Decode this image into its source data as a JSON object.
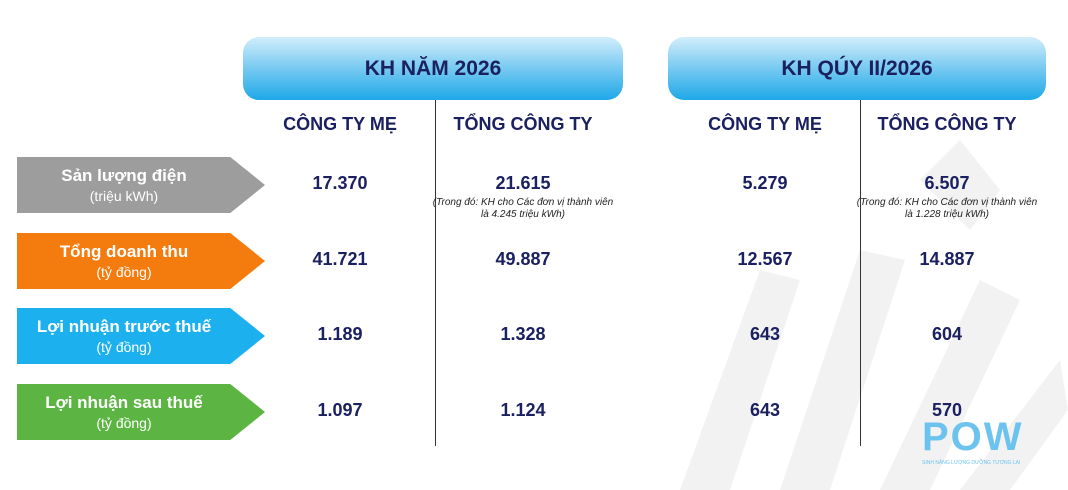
{
  "header": {
    "groups": [
      "KH NĂM 2026",
      "KH QÚY II/2026"
    ],
    "columns": [
      "CÔNG TY MẸ",
      "TỔNG CÔNG TY",
      "CÔNG TY MẸ",
      "TỔNG CÔNG TY"
    ]
  },
  "table": {
    "rows": [
      {
        "label": "Sản lượng điện",
        "unit": "(triệu kWh)",
        "values": [
          "17.370",
          "21.615",
          "5.279",
          "6.507"
        ],
        "notes": {
          "1": "(Trong đó: KH cho Các đơn vị thành viên là 4.245 triệu kWh)",
          "3": "(Trong đó: KH cho Các đơn vị thành viên là 1.228 triệu kWh)"
        }
      },
      {
        "label": "Tổng doanh thu",
        "unit": "(tỷ đồng)",
        "values": [
          "41.721",
          "49.887",
          "12.567",
          "14.887"
        ]
      },
      {
        "label": "Lợi nhuận trước thuế",
        "unit": "(tỷ đồng)",
        "values": [
          "1.189",
          "1.328",
          "643",
          "604"
        ]
      },
      {
        "label": "Lợi nhuận sau thuế",
        "unit": "(tỷ đồng)",
        "values": [
          "1.097",
          "1.124",
          "643",
          "570"
        ]
      }
    ]
  },
  "logo": {
    "name": "POW",
    "tagline": "SINH NĂNG LƯỢNG DƯỠNG TƯƠNG LAI"
  }
}
